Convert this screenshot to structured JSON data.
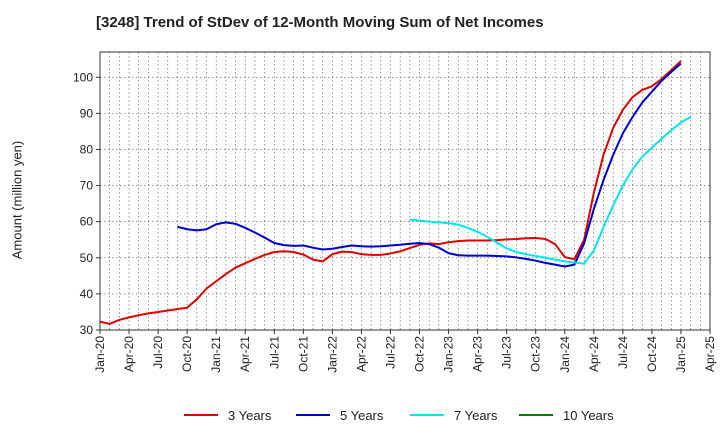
{
  "title": "[3248]  Trend of StDev of 12-Month Moving Sum of Net Incomes",
  "chart_data": {
    "type": "line",
    "title": "[3248]  Trend of StDev of 12-Month Moving Sum of Net Incomes",
    "xlabel": "",
    "ylabel": "Amount (million yen)",
    "ylim": [
      30,
      107
    ],
    "yticks": [
      30,
      40,
      50,
      60,
      70,
      80,
      90,
      100
    ],
    "xticks": [
      "Jan-20",
      "Apr-20",
      "Jul-20",
      "Oct-20",
      "Jan-21",
      "Apr-21",
      "Jul-21",
      "Oct-21",
      "Jan-22",
      "Apr-22",
      "Jul-22",
      "Oct-22",
      "Jan-23",
      "Apr-23",
      "Jul-23",
      "Oct-23",
      "Jan-24",
      "Apr-24",
      "Jul-24",
      "Oct-24",
      "Jan-25",
      "Apr-25"
    ],
    "grid": true,
    "legend_position": "bottom",
    "series": [
      {
        "name": "3 Years",
        "color": "#e00000",
        "start": "Jan-20",
        "values": [
          32.3,
          31.7,
          32.8,
          33.5,
          34.1,
          34.6,
          35.0,
          35.4,
          35.8,
          36.2,
          38.5,
          41.5,
          43.5,
          45.5,
          47.3,
          48.5,
          49.7,
          50.8,
          51.6,
          51.8,
          51.6,
          50.9,
          49.5,
          49.0,
          51.0,
          51.7,
          51.6,
          51.0,
          50.8,
          50.8,
          51.2,
          51.8,
          52.7,
          53.6,
          54.0,
          53.8,
          54.3,
          54.6,
          54.8,
          54.8,
          54.8,
          54.9,
          55.1,
          55.2,
          55.4,
          55.5,
          55.2,
          53.8,
          50.2,
          49.6,
          55.0,
          68.0,
          78.5,
          86.0,
          91.0,
          94.5,
          96.5,
          97.5,
          99.5,
          102.0,
          104.5
        ]
      },
      {
        "name": "5 Years",
        "color": "#0000cc",
        "start": "Sep-20",
        "values": [
          58.6,
          57.9,
          57.6,
          57.9,
          59.3,
          59.8,
          59.4,
          58.3,
          57.0,
          55.6,
          54.1,
          53.5,
          53.3,
          53.4,
          52.8,
          52.3,
          52.5,
          53.0,
          53.4,
          53.2,
          53.1,
          53.2,
          53.4,
          53.6,
          53.9,
          54.1,
          53.8,
          52.8,
          51.3,
          50.7,
          50.6,
          50.6,
          50.6,
          50.5,
          50.4,
          50.1,
          49.7,
          49.2,
          48.6,
          48.1,
          47.6,
          48.1,
          54.0,
          63.5,
          71.5,
          78.5,
          84.5,
          89.0,
          93.0,
          96.0,
          99.0,
          101.5,
          103.8
        ]
      },
      {
        "name": "7 Years",
        "color": "#00e5ee",
        "start": "Sep-22",
        "values": [
          60.6,
          60.3,
          60.0,
          59.8,
          59.6,
          59.2,
          58.3,
          57.2,
          55.8,
          54.2,
          52.6,
          51.6,
          51.0,
          50.5,
          50.0,
          49.5,
          49.0,
          48.7,
          48.4,
          52.0,
          58.5,
          64.5,
          70.0,
          74.5,
          78.0,
          80.5,
          83.0,
          85.3,
          87.5,
          89.0
        ]
      },
      {
        "name": "10 Years",
        "color": "#008000",
        "start": "",
        "values": []
      }
    ]
  },
  "legend": [
    {
      "label": "3 Years",
      "color": "#e00000"
    },
    {
      "label": "5 Years",
      "color": "#0000cc"
    },
    {
      "label": "7 Years",
      "color": "#00e5ee"
    },
    {
      "label": "10 Years",
      "color": "#008000"
    }
  ]
}
